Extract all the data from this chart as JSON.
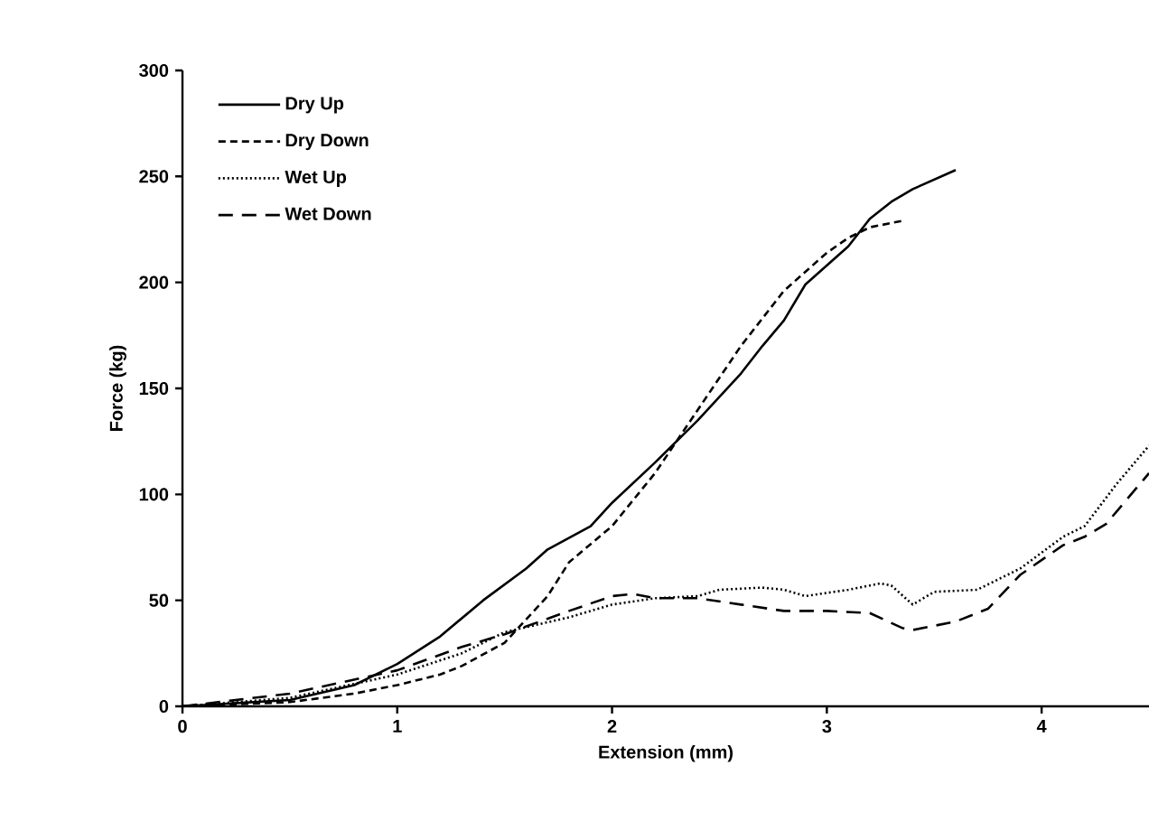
{
  "chart_data": {
    "type": "line",
    "xlabel": "Extension (mm)",
    "ylabel": "Force (kg)",
    "xlim": [
      0,
      4.5
    ],
    "ylim": [
      0,
      300
    ],
    "xticks": [
      0,
      1,
      2,
      3,
      4
    ],
    "yticks": [
      0,
      50,
      100,
      150,
      200,
      250,
      300
    ],
    "legend": "top left",
    "grid": false,
    "marker": "none",
    "series": [
      {
        "name": "Dry Up",
        "color": "#000000",
        "line_style": "solid",
        "x": [
          0,
          0.5,
          0.8,
          1,
          1.2,
          1.4,
          1.6,
          1.7,
          1.9,
          2,
          2.2,
          2.4,
          2.6,
          2.7,
          2.8,
          2.9,
          3.1,
          3.2,
          3.3,
          3.4,
          3.6
        ],
        "values": [
          0,
          3,
          10,
          20,
          33,
          50,
          65,
          74,
          85,
          96,
          115,
          135,
          157,
          170,
          182,
          199,
          217,
          230,
          238,
          244,
          253
        ]
      },
      {
        "name": "Dry Down",
        "color": "#000000",
        "line_style": "dashed",
        "x": [
          0,
          0.5,
          0.8,
          1,
          1.2,
          1.3,
          1.5,
          1.7,
          1.8,
          2,
          2.2,
          2.4,
          2.6,
          2.8,
          3,
          3.1,
          3.2,
          3.35
        ],
        "values": [
          0,
          2,
          6,
          10,
          15,
          19,
          30,
          52,
          68,
          85,
          110,
          140,
          170,
          196,
          214,
          221,
          226,
          229
        ]
      },
      {
        "name": "Wet Up",
        "color": "#000000",
        "line_style": "dotted",
        "x": [
          0,
          0.5,
          1,
          1.3,
          1.5,
          1.8,
          2,
          2.2,
          2.4,
          2.5,
          2.7,
          2.8,
          2.9,
          3.1,
          3.25,
          3.3,
          3.4,
          3.5,
          3.7,
          3.9,
          4.1,
          4.2,
          4.35,
          4.5
        ],
        "values": [
          0,
          4,
          15,
          25,
          35,
          42,
          48,
          51,
          52,
          55,
          56,
          55,
          52,
          55,
          58,
          57,
          48,
          54,
          55,
          65,
          80,
          85,
          105,
          123
        ]
      },
      {
        "name": "Wet Down",
        "color": "#000000",
        "line_style": "longdash",
        "x": [
          0,
          0.5,
          1,
          1.3,
          1.5,
          1.8,
          2,
          2.1,
          2.2,
          2.4,
          2.6,
          2.8,
          3,
          3.2,
          3.35,
          3.4,
          3.6,
          3.75,
          3.9,
          4.1,
          4.2,
          4.3,
          4.5
        ],
        "values": [
          0,
          6,
          17,
          28,
          34,
          45,
          52,
          53,
          51,
          51,
          48,
          45,
          45,
          44,
          37,
          36,
          40,
          46,
          62,
          76,
          80,
          86,
          110
        ]
      }
    ]
  }
}
